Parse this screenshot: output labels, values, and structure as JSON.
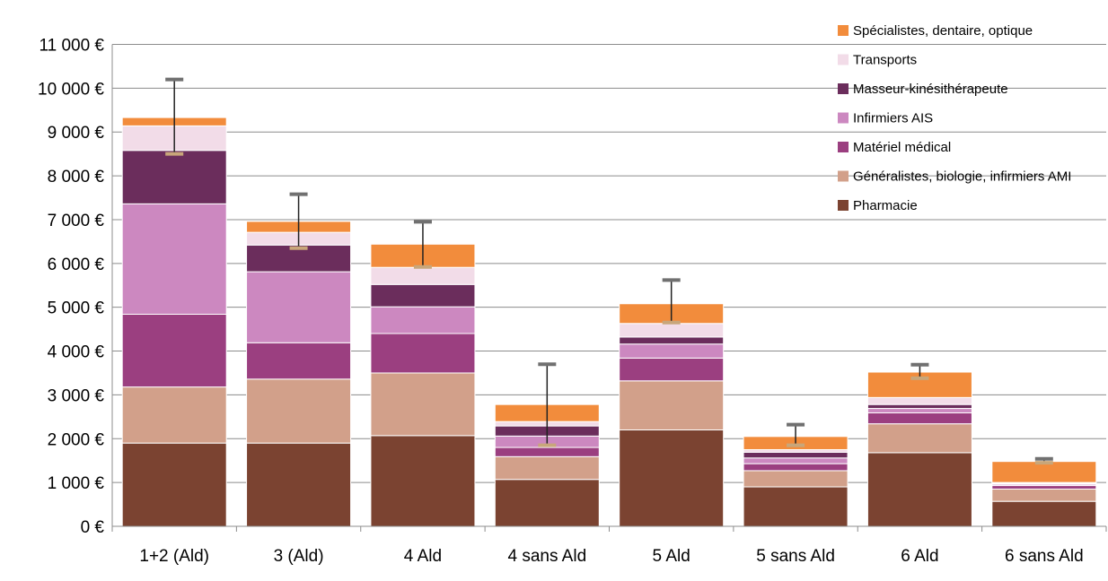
{
  "chart_data": {
    "type": "bar",
    "stacked": true,
    "categories": [
      "1+2 (Ald)",
      "3 (Ald)",
      "4 Ald",
      "4 sans Ald",
      "5 Ald",
      "5 sans Ald",
      "6 Ald",
      "6 sans Ald"
    ],
    "ylim": [
      0,
      11000
    ],
    "yticks": [
      0,
      1000,
      2000,
      3000,
      4000,
      5000,
      6000,
      7000,
      8000,
      9000,
      10000,
      11000
    ],
    "ytick_labels": [
      "0 €",
      "1 000 €",
      "2 000 €",
      "3 000 €",
      "4 000 €",
      "5 000 €",
      "6 000 €",
      "7 000 €",
      "8 000 €",
      "9 000 €",
      "10 000 €",
      "11 000 €"
    ],
    "grid": true,
    "legend_position": "top-right",
    "series": [
      {
        "name": "Pharmacie",
        "color": "#7b4331",
        "values": [
          1900,
          1900,
          2070,
          1070,
          2200,
          900,
          1680,
          570
        ]
      },
      {
        "name": "Généralistes, biologie, infirmiers AMI",
        "color": "#d2a08a",
        "values": [
          1280,
          1460,
          1430,
          520,
          1120,
          370,
          660,
          280
        ]
      },
      {
        "name": "Matériel médical",
        "color": "#9b3f80",
        "values": [
          1660,
          830,
          900,
          210,
          520,
          160,
          250,
          80
        ]
      },
      {
        "name": "Infirmiers AIS",
        "color": "#cc88c0",
        "values": [
          2520,
          1620,
          610,
          260,
          320,
          130,
          100,
          30
        ]
      },
      {
        "name": "Masseur-kinésithérapeute",
        "color": "#6b2d5c",
        "values": [
          1220,
          610,
          510,
          230,
          160,
          130,
          90,
          20
        ]
      },
      {
        "name": "Transports",
        "color": "#f2dce8",
        "values": [
          560,
          290,
          390,
          100,
          310,
          60,
          160,
          20
        ]
      },
      {
        "name": "Spécialistes, dentaire, optique",
        "color": "#f28c3c",
        "values": [
          190,
          250,
          530,
          390,
          450,
          300,
          580,
          480
        ]
      }
    ],
    "error_bars": {
      "lower": [
        8500,
        6350,
        5920,
        1850,
        4650,
        1850,
        3380,
        1450
      ],
      "upper": [
        10200,
        7580,
        6950,
        3700,
        5620,
        2320,
        3690,
        1540
      ]
    }
  }
}
